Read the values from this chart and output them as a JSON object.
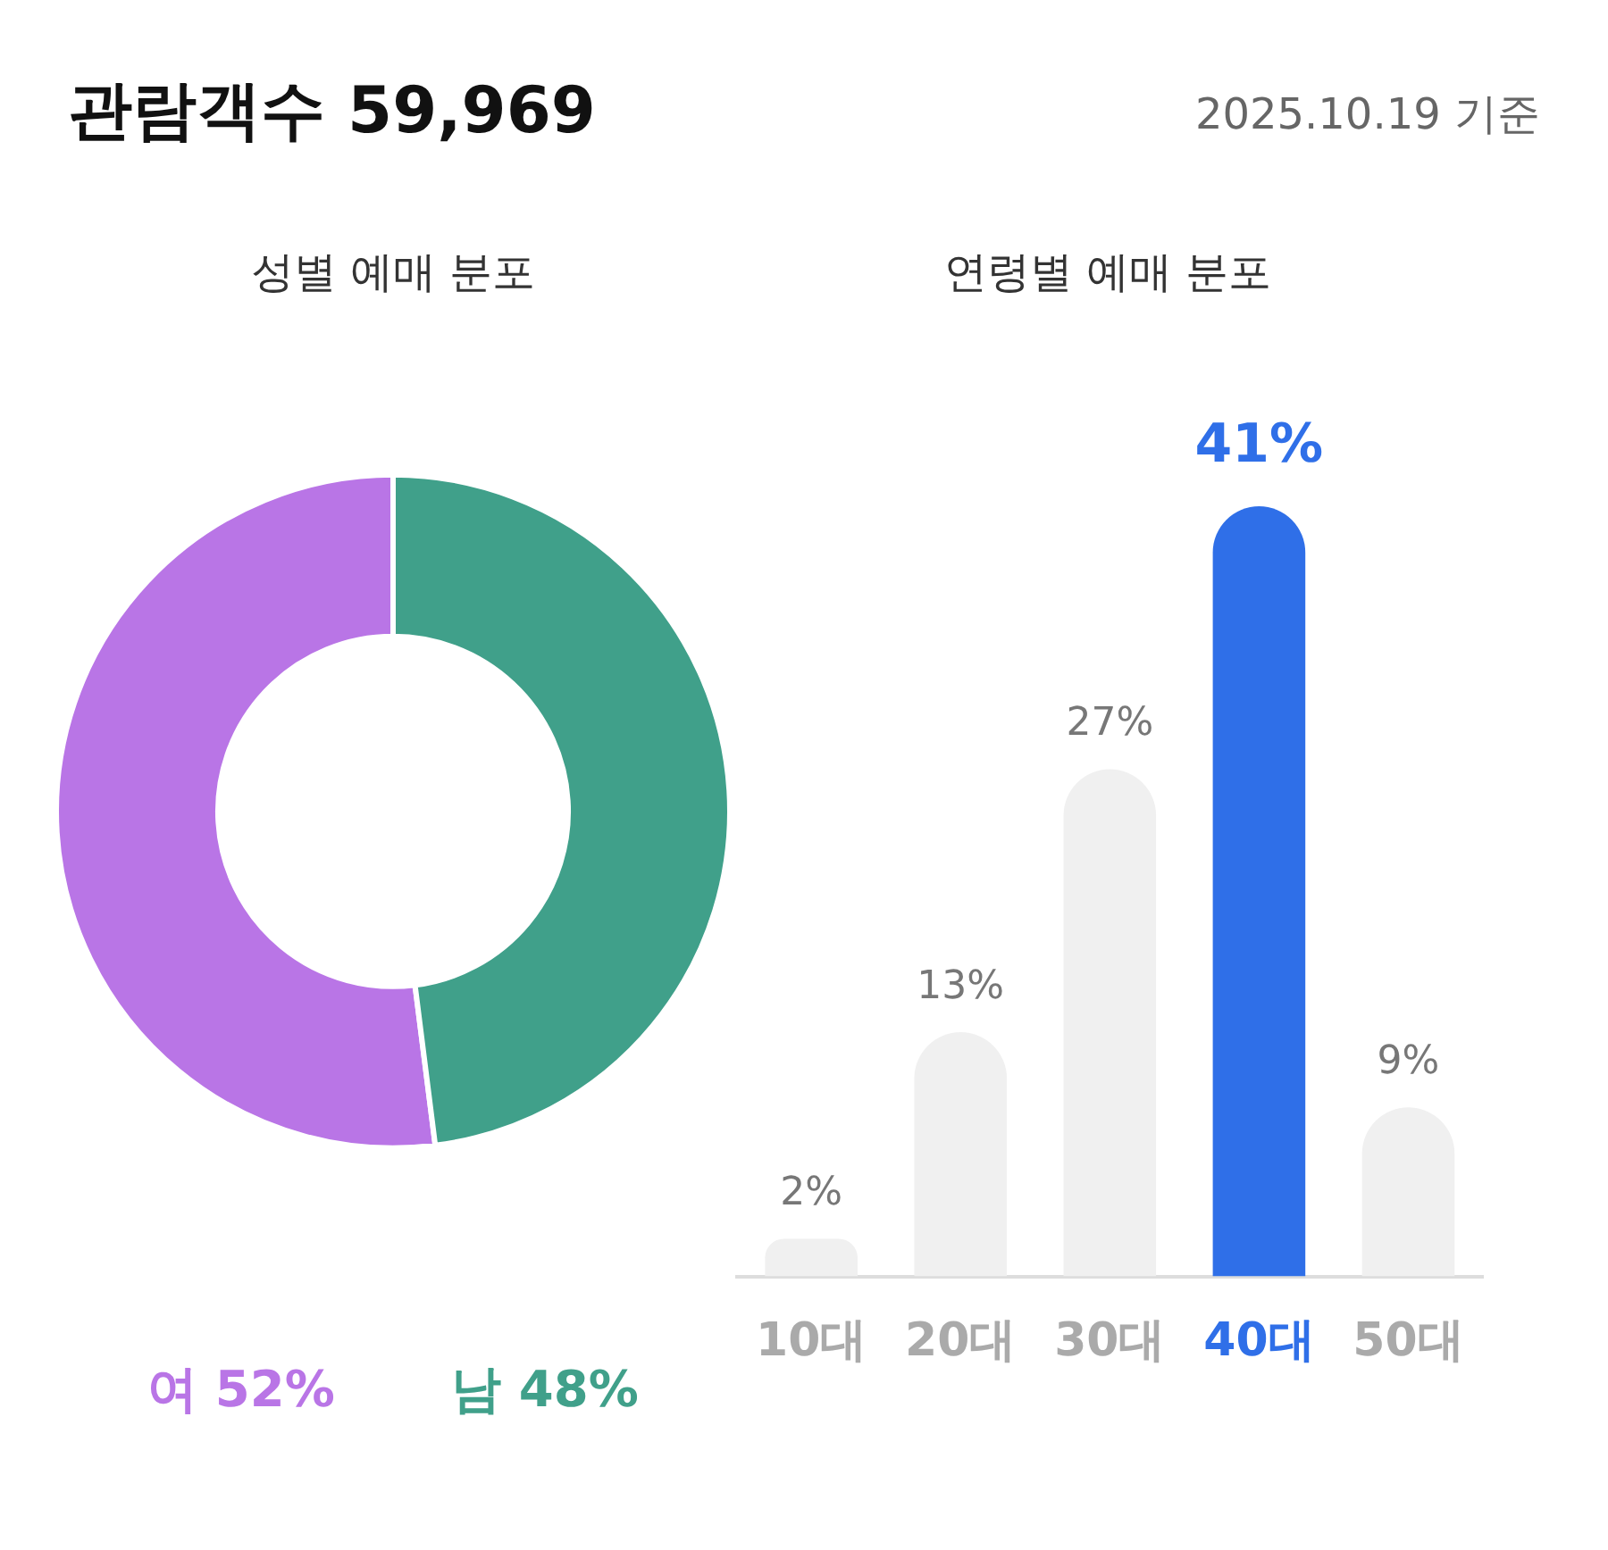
{
  "chart_data": [
    {
      "type": "other",
      "title": "관람객수 59,969",
      "annotations": [
        "2025.10.19 기준"
      ]
    },
    {
      "type": "donut",
      "title": "성별 예매 분포",
      "categories": [
        "여",
        "남"
      ],
      "values": [
        52,
        48
      ],
      "colors": [
        "#b975e6",
        "#40a08a"
      ],
      "value_labels": [
        "52%",
        "48%"
      ]
    },
    {
      "type": "bar",
      "title": "연령별 예매 분포",
      "categories": [
        "10대",
        "20대",
        "30대",
        "40대",
        "50대"
      ],
      "values": [
        2,
        13,
        27,
        41,
        9
      ],
      "colors": [
        "#f0f0f0",
        "#f0f0f0",
        "#f0f0f0",
        "#2f6fe8",
        "#f0f0f0"
      ],
      "value_labels": [
        "2%",
        "13%",
        "27%",
        "41%",
        "9%"
      ]
    }
  ]
}
